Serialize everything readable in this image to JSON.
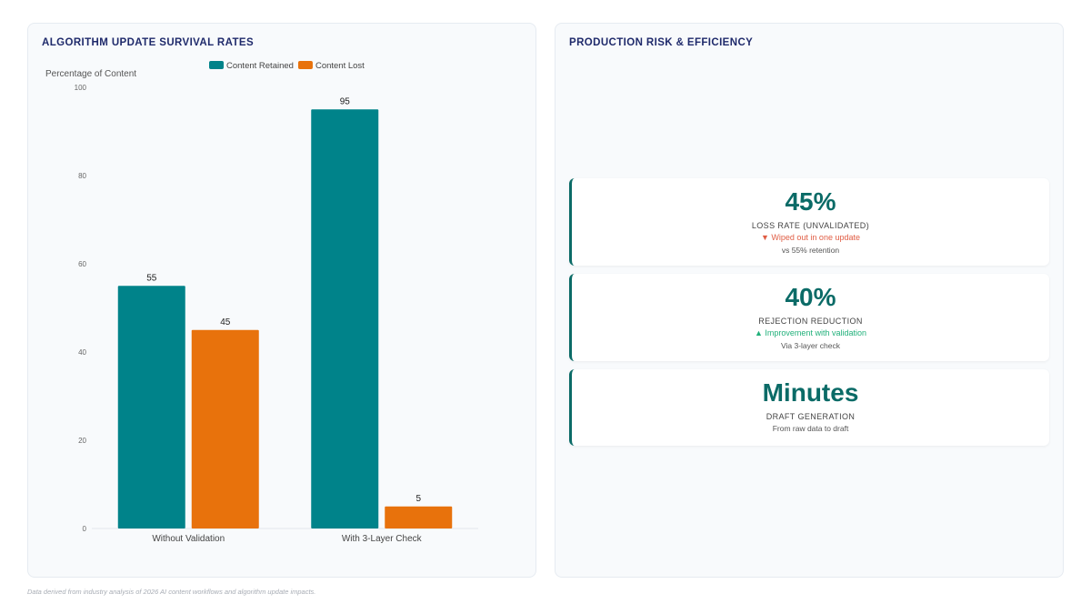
{
  "left_panel": {
    "title": "ALGORITHM UPDATE SURVIVAL RATES"
  },
  "right_panel": {
    "title": "PRODUCTION RISK & EFFICIENCY"
  },
  "chart_data": {
    "type": "bar",
    "categories": [
      "Without Validation",
      "With 3-Layer Check"
    ],
    "series": [
      {
        "name": "Content Retained",
        "values": [
          55,
          95
        ],
        "color": "#00838a"
      },
      {
        "name": "Content Lost",
        "values": [
          45,
          5
        ],
        "color": "#e8720c"
      }
    ],
    "ylabel": "Percentage of Content",
    "ylim": [
      0,
      100
    ],
    "yticks": [
      0,
      20,
      40,
      60,
      80,
      100
    ],
    "legend": "top-center",
    "grid": false
  },
  "kpis": [
    {
      "value": "45%",
      "label": "LOSS RATE (UNVALIDATED)",
      "trend": "▼ Wiped out in one update",
      "trend_direction": "down",
      "note": "vs 55% retention"
    },
    {
      "value": "40%",
      "label": "REJECTION REDUCTION",
      "trend": "▲ Improvement with validation",
      "trend_direction": "up",
      "note": "Via 3-layer check"
    },
    {
      "value": "Minutes",
      "label": "DRAFT GENERATION",
      "trend": "",
      "trend_direction": "",
      "note": "From raw data to draft"
    }
  ],
  "footnote": "Data derived from industry analysis of 2026 AI content workflows and algorithm update impacts."
}
